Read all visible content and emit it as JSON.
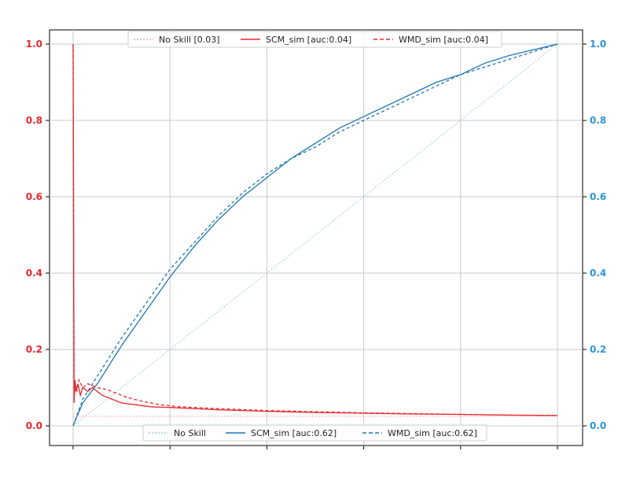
{
  "chart_data": {
    "type": "line",
    "title": "",
    "xlabel": "",
    "xlim": [
      0,
      1
    ],
    "grid": true,
    "left_axis": {
      "label": "",
      "ylim": [
        0,
        1
      ],
      "ticks": [
        "0.0",
        "0.2",
        "0.4",
        "0.6",
        "0.8",
        "1.0"
      ],
      "color": "#e8262c"
    },
    "right_axis": {
      "label": "",
      "ylim": [
        0,
        1
      ],
      "ticks": [
        "0.0",
        "0.2",
        "0.4",
        "0.6",
        "0.8",
        "1.0"
      ],
      "color": "#2b92d8"
    },
    "legend_top": {
      "placement": "top-center",
      "entries": [
        "No Skill [0.03]",
        "SCM_sim [auc:0.04]",
        "WMD_sim [auc:0.04]"
      ]
    },
    "legend_bottom": {
      "placement": "bottom-center",
      "entries": [
        "No Skill",
        "SCM_sim [auc:0.62]",
        "WMD_sim [auc:0.62]"
      ]
    },
    "series_left": [
      {
        "name": "No Skill [0.03]",
        "color": "#f3a8ab",
        "style": "dotted",
        "x": [
          0,
          1
        ],
        "y": [
          0.025,
          0.025
        ]
      },
      {
        "name": "SCM_sim [auc:0.04]",
        "color": "#e8262c",
        "style": "solid",
        "x": [
          0,
          0.002,
          0.004,
          0.006,
          0.01,
          0.015,
          0.02,
          0.03,
          0.04,
          0.06,
          0.08,
          0.1,
          0.13,
          0.16,
          0.2,
          0.3,
          0.4,
          0.5,
          0.6,
          0.7,
          0.8,
          0.9,
          1.0
        ],
        "y": [
          1.0,
          0.06,
          0.12,
          0.09,
          0.11,
          0.08,
          0.1,
          0.09,
          0.1,
          0.08,
          0.07,
          0.06,
          0.055,
          0.05,
          0.048,
          0.042,
          0.038,
          0.035,
          0.033,
          0.031,
          0.03,
          0.028,
          0.027
        ]
      },
      {
        "name": "WMD_sim [auc:0.04]",
        "color": "#e8262c",
        "style": "dashed",
        "x": [
          0,
          0.002,
          0.004,
          0.008,
          0.012,
          0.02,
          0.03,
          0.05,
          0.07,
          0.09,
          0.11,
          0.14,
          0.18,
          0.22,
          0.3,
          0.4,
          0.5,
          0.6,
          0.7,
          0.8,
          0.9,
          1.0
        ],
        "y": [
          1.0,
          0.08,
          0.11,
          0.09,
          0.12,
          0.1,
          0.11,
          0.1,
          0.095,
          0.085,
          0.075,
          0.065,
          0.055,
          0.05,
          0.045,
          0.04,
          0.037,
          0.034,
          0.032,
          0.03,
          0.028,
          0.027
        ]
      }
    ],
    "series_right": [
      {
        "name": "No Skill",
        "color": "#a7c8e0",
        "style": "dotted",
        "x": [
          0,
          1
        ],
        "y": [
          0,
          1
        ]
      },
      {
        "name": "SCM_sim [auc:0.62]",
        "color": "#1f77b4",
        "style": "solid",
        "x": [
          0,
          0.02,
          0.05,
          0.1,
          0.15,
          0.2,
          0.25,
          0.3,
          0.35,
          0.4,
          0.45,
          0.5,
          0.55,
          0.6,
          0.65,
          0.7,
          0.75,
          0.8,
          0.85,
          0.9,
          0.95,
          1.0
        ],
        "y": [
          0,
          0.06,
          0.11,
          0.21,
          0.3,
          0.39,
          0.47,
          0.54,
          0.6,
          0.65,
          0.7,
          0.74,
          0.78,
          0.81,
          0.84,
          0.87,
          0.9,
          0.92,
          0.95,
          0.97,
          0.985,
          1.0
        ]
      },
      {
        "name": "WMD_sim [auc:0.62]",
        "color": "#1f77b4",
        "style": "dashed",
        "x": [
          0,
          0.02,
          0.05,
          0.1,
          0.15,
          0.2,
          0.25,
          0.3,
          0.35,
          0.4,
          0.45,
          0.5,
          0.55,
          0.6,
          0.65,
          0.7,
          0.75,
          0.8,
          0.85,
          0.9,
          0.95,
          1.0
        ],
        "y": [
          0,
          0.07,
          0.13,
          0.23,
          0.32,
          0.41,
          0.48,
          0.55,
          0.61,
          0.66,
          0.7,
          0.73,
          0.77,
          0.8,
          0.83,
          0.86,
          0.89,
          0.92,
          0.94,
          0.96,
          0.98,
          1.0
        ]
      }
    ]
  }
}
